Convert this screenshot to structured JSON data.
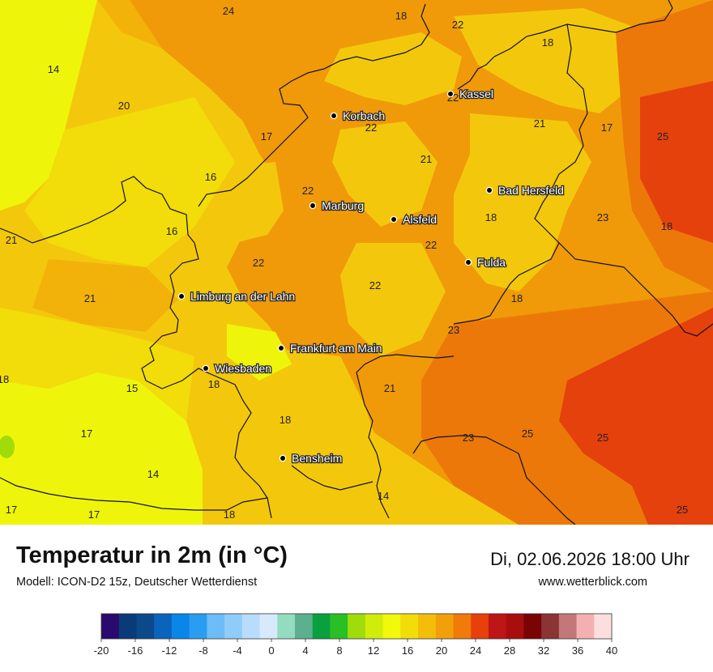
{
  "header": {
    "title": "Temperatur in 2m (in °C)",
    "model": "Modell: ICON-D2 15z, Deutscher Wetterdienst",
    "datetime": "Di, 02.06.2026 18:00 Uhr",
    "website": "www.wetterblick.com"
  },
  "cities": [
    {
      "name": "Kassel"
    },
    {
      "name": "Korbach"
    },
    {
      "name": "Bad Hersfeld"
    },
    {
      "name": "Marburg"
    },
    {
      "name": "Alsfeld"
    },
    {
      "name": "Fulda"
    },
    {
      "name": "Limburg an der Lahn"
    },
    {
      "name": "Frankfurt am Main"
    },
    {
      "name": "Wiesbaden"
    },
    {
      "name": "Bensheim"
    }
  ],
  "temperature_labels": [
    {
      "value": "24"
    },
    {
      "value": "18"
    },
    {
      "value": "22"
    },
    {
      "value": "18"
    },
    {
      "value": "14"
    },
    {
      "value": "20"
    },
    {
      "value": "22"
    },
    {
      "value": "17"
    },
    {
      "value": "22"
    },
    {
      "value": "21"
    },
    {
      "value": "17"
    },
    {
      "value": "25"
    },
    {
      "value": "21"
    },
    {
      "value": "16"
    },
    {
      "value": "22"
    },
    {
      "value": "18"
    },
    {
      "value": "23"
    },
    {
      "value": "21"
    },
    {
      "value": "16"
    },
    {
      "value": "18"
    },
    {
      "value": "22"
    },
    {
      "value": "22"
    },
    {
      "value": "22"
    },
    {
      "value": "21"
    },
    {
      "value": "18"
    },
    {
      "value": "23"
    },
    {
      "value": "18"
    },
    {
      "value": "18"
    },
    {
      "value": "15"
    },
    {
      "value": "21"
    },
    {
      "value": "17"
    },
    {
      "value": "18"
    },
    {
      "value": "23"
    },
    {
      "value": "25"
    },
    {
      "value": "25"
    },
    {
      "value": "14"
    },
    {
      "value": "14"
    },
    {
      "value": "17"
    },
    {
      "value": "17"
    },
    {
      "value": "18"
    },
    {
      "value": "25"
    }
  ],
  "legend": {
    "colors": [
      "#2a0a6e",
      "#0a3a78",
      "#0a4a8a",
      "#0a64bc",
      "#0a86e8",
      "#2a9cf2",
      "#6cbcf8",
      "#90ccfa",
      "#b8dcfc",
      "#d6eafc",
      "#94dcc0",
      "#5cb090",
      "#0aa040",
      "#28c024",
      "#a0dc0a",
      "#d0ec0a",
      "#f2f80a",
      "#f2dc0a",
      "#f2be0a",
      "#f2a00a",
      "#f07a0a",
      "#e8400a",
      "#be1616",
      "#a80e0e",
      "#7a0404",
      "#8a3434",
      "#c27878",
      "#f4b0b0",
      "#fcdede"
    ],
    "ticks": [
      "-20",
      "-16",
      "-12",
      "-8",
      "-4",
      "0",
      "4",
      "8",
      "12",
      "16",
      "20",
      "24",
      "28",
      "32",
      "36",
      "40"
    ]
  },
  "colors": {
    "t14": "#eef50a",
    "t16": "#f2dc0a",
    "t18": "#f3cb0c",
    "t20": "#f2b20a",
    "t22": "#f0940a",
    "t23": "#ec780a",
    "t25": "#e5410c",
    "borders": "#111111"
  }
}
